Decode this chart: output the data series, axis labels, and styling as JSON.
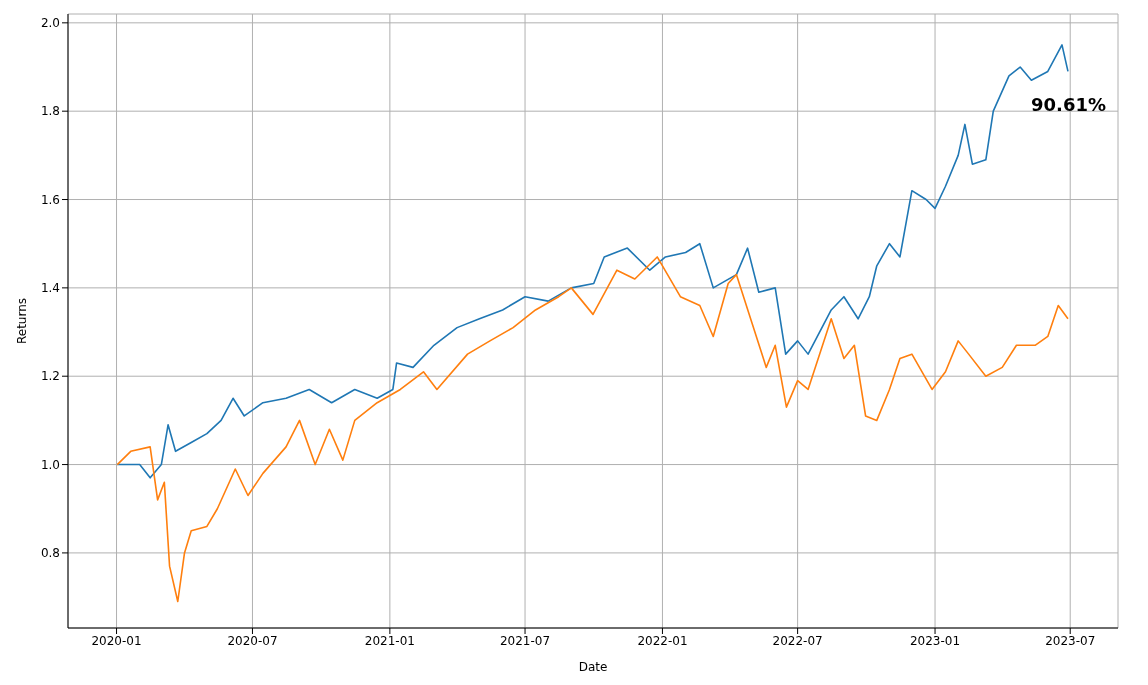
{
  "chart_data": {
    "type": "line",
    "xlabel": "Date",
    "ylabel": "Returns",
    "annotations": [
      "90.61%"
    ],
    "grid": true,
    "legend": false,
    "marker": "none",
    "line_style": "solid",
    "xlim": [
      "2019-10-28",
      "2023-09-03"
    ],
    "xticks": [
      {
        "value": "2020-01",
        "label": "2020-01"
      },
      {
        "value": "2020-07",
        "label": "2020-07"
      },
      {
        "value": "2021-01",
        "label": "2021-01"
      },
      {
        "value": "2021-07",
        "label": "2021-07"
      },
      {
        "value": "2022-01",
        "label": "2022-01"
      },
      {
        "value": "2022-07",
        "label": "2022-07"
      },
      {
        "value": "2023-01",
        "label": "2023-01"
      },
      {
        "value": "2023-07",
        "label": "2023-07"
      }
    ],
    "ylim": [
      0.63,
      2.02
    ],
    "yticks": [
      {
        "value": 0.8,
        "label": "0.8"
      },
      {
        "value": 1,
        "label": "1.0"
      },
      {
        "value": 1.2,
        "label": "1.2"
      },
      {
        "value": 1.4,
        "label": "1.4"
      },
      {
        "value": 1.6,
        "label": "1.6"
      },
      {
        "value": 1.8,
        "label": "1.8"
      },
      {
        "value": 2,
        "label": "2.0"
      }
    ],
    "series": [
      {
        "color": "#1f77b4",
        "x": [
          "2020-01-02",
          "2020-02-01",
          "2020-02-15",
          "2020-03-01",
          "2020-03-10",
          "2020-03-20",
          "2020-04-10",
          "2020-05-01",
          "2020-05-20",
          "2020-06-05",
          "2020-06-20",
          "2020-07-15",
          "2020-08-15",
          "2020-09-15",
          "2020-10-15",
          "2020-11-15",
          "2020-12-15",
          "2021-01-05",
          "2021-01-10",
          "2021-02-01",
          "2021-03-01",
          "2021-04-01",
          "2021-05-01",
          "2021-06-01",
          "2021-07-01",
          "2021-08-01",
          "2021-09-01",
          "2021-10-01",
          "2021-10-15",
          "2021-11-15",
          "2021-12-15",
          "2022-01-05",
          "2022-02-01",
          "2022-02-20",
          "2022-03-10",
          "2022-04-10",
          "2022-04-25",
          "2022-05-10",
          "2022-06-01",
          "2022-06-15",
          "2022-07-01",
          "2022-07-15",
          "2022-08-15",
          "2022-09-01",
          "2022-09-20",
          "2022-10-05",
          "2022-10-15",
          "2022-11-01",
          "2022-11-15",
          "2022-12-01",
          "2022-12-20",
          "2023-01-01",
          "2023-01-15",
          "2023-02-01",
          "2023-02-10",
          "2023-02-20",
          "2023-03-10",
          "2023-03-20",
          "2023-04-10",
          "2023-04-25",
          "2023-05-10",
          "2023-06-01",
          "2023-06-20",
          "2023-06-28"
        ],
        "values": [
          1.0,
          1.0,
          0.97,
          1.0,
          1.09,
          1.03,
          1.05,
          1.07,
          1.1,
          1.15,
          1.11,
          1.14,
          1.15,
          1.17,
          1.14,
          1.17,
          1.15,
          1.17,
          1.23,
          1.22,
          1.27,
          1.31,
          1.33,
          1.35,
          1.38,
          1.37,
          1.4,
          1.41,
          1.47,
          1.49,
          1.44,
          1.47,
          1.48,
          1.5,
          1.4,
          1.43,
          1.49,
          1.39,
          1.4,
          1.25,
          1.28,
          1.25,
          1.35,
          1.38,
          1.33,
          1.38,
          1.45,
          1.5,
          1.47,
          1.62,
          1.6,
          1.58,
          1.63,
          1.7,
          1.77,
          1.68,
          1.69,
          1.8,
          1.88,
          1.9,
          1.87,
          1.89,
          1.95,
          1.89
        ]
      },
      {
        "color": "#ff7f0e",
        "x": [
          "2020-01-02",
          "2020-01-20",
          "2020-02-15",
          "2020-02-25",
          "2020-03-05",
          "2020-03-12",
          "2020-03-23",
          "2020-04-01",
          "2020-04-10",
          "2020-05-01",
          "2020-05-15",
          "2020-06-08",
          "2020-06-25",
          "2020-07-15",
          "2020-08-15",
          "2020-09-02",
          "2020-09-23",
          "2020-10-12",
          "2020-10-30",
          "2020-11-15",
          "2020-12-15",
          "2021-01-15",
          "2021-02-15",
          "2021-03-05",
          "2021-04-15",
          "2021-05-15",
          "2021-06-15",
          "2021-07-15",
          "2021-08-15",
          "2021-09-01",
          "2021-09-30",
          "2021-11-01",
          "2021-11-25",
          "2021-12-25",
          "2022-01-25",
          "2022-02-20",
          "2022-03-10",
          "2022-03-30",
          "2022-04-10",
          "2022-05-01",
          "2022-05-20",
          "2022-06-01",
          "2022-06-16",
          "2022-07-01",
          "2022-07-15",
          "2022-08-15",
          "2022-09-01",
          "2022-09-15",
          "2022-09-30",
          "2022-10-15",
          "2022-11-01",
          "2022-11-15",
          "2022-12-01",
          "2022-12-28",
          "2023-01-15",
          "2023-02-01",
          "2023-02-15",
          "2023-03-10",
          "2023-04-01",
          "2023-04-20",
          "2023-05-15",
          "2023-06-01",
          "2023-06-15",
          "2023-06-28"
        ],
        "values": [
          1.0,
          1.03,
          1.04,
          0.92,
          0.96,
          0.77,
          0.69,
          0.8,
          0.85,
          0.86,
          0.9,
          0.99,
          0.93,
          0.98,
          1.04,
          1.1,
          1.0,
          1.08,
          1.01,
          1.1,
          1.14,
          1.17,
          1.21,
          1.17,
          1.25,
          1.28,
          1.31,
          1.35,
          1.38,
          1.4,
          1.34,
          1.44,
          1.42,
          1.47,
          1.38,
          1.36,
          1.29,
          1.41,
          1.43,
          1.32,
          1.22,
          1.27,
          1.13,
          1.19,
          1.17,
          1.33,
          1.24,
          1.27,
          1.11,
          1.1,
          1.17,
          1.24,
          1.25,
          1.17,
          1.21,
          1.28,
          1.25,
          1.2,
          1.22,
          1.27,
          1.27,
          1.29,
          1.36,
          1.33
        ]
      }
    ]
  }
}
